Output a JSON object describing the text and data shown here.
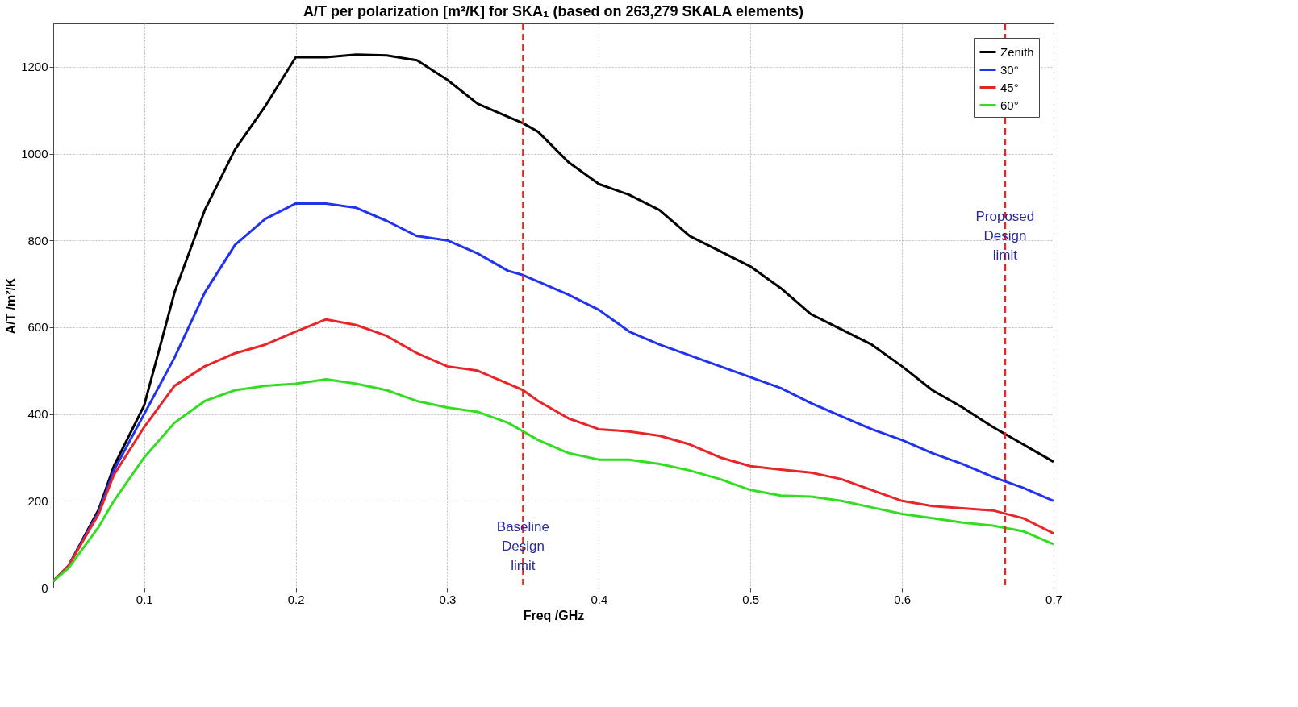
{
  "chart_data": {
    "type": "line",
    "title": "A/T per polarization [m²/K] for SKA₁ (based on 263,279 SKALA elements)",
    "xlabel": "Freq /GHz",
    "ylabel": "A/T /m²/K",
    "x": [
      0.04,
      0.05,
      0.07,
      0.08,
      0.1,
      0.12,
      0.14,
      0.16,
      0.18,
      0.2,
      0.22,
      0.24,
      0.26,
      0.28,
      0.3,
      0.32,
      0.34,
      0.35,
      0.36,
      0.38,
      0.4,
      0.42,
      0.44,
      0.46,
      0.48,
      0.5,
      0.52,
      0.54,
      0.56,
      0.58,
      0.6,
      0.62,
      0.64,
      0.66,
      0.68,
      0.7
    ],
    "series": [
      {
        "name": "Zenith",
        "color": "#000000",
        "values": [
          15,
          50,
          180,
          280,
          420,
          680,
          870,
          1010,
          1110,
          1222,
          1222,
          1228,
          1226,
          1215,
          1170,
          1115,
          1085,
          1070,
          1050,
          980,
          930,
          905,
          870,
          810,
          775,
          740,
          690,
          630,
          595,
          560,
          510,
          455,
          415,
          370,
          330,
          290
        ]
      },
      {
        "name": "30°",
        "color": "#2233ee",
        "values": [
          15,
          50,
          175,
          270,
          400,
          530,
          680,
          790,
          850,
          885,
          885,
          875,
          845,
          810,
          800,
          770,
          730,
          720,
          705,
          675,
          640,
          590,
          560,
          535,
          510,
          485,
          460,
          425,
          395,
          365,
          340,
          310,
          285,
          255,
          230,
          200
        ]
      },
      {
        "name": "45°",
        "color": "#e8262a",
        "values": [
          15,
          50,
          170,
          260,
          370,
          465,
          510,
          540,
          560,
          590,
          618,
          605,
          580,
          540,
          510,
          500,
          470,
          455,
          430,
          390,
          365,
          360,
          350,
          330,
          300,
          280,
          272,
          265,
          250,
          225,
          200,
          188,
          183,
          178,
          160,
          125
        ]
      },
      {
        "name": "60°",
        "color": "#33dd22",
        "values": [
          15,
          45,
          140,
          200,
          300,
          380,
          430,
          455,
          465,
          470,
          480,
          470,
          455,
          430,
          415,
          405,
          380,
          360,
          340,
          310,
          295,
          295,
          285,
          270,
          250,
          225,
          212,
          210,
          200,
          185,
          170,
          160,
          150,
          143,
          130,
          100
        ]
      }
    ],
    "xlim": [
      0.04,
      0.7
    ],
    "xticks": [
      0.1,
      0.2,
      0.3,
      0.4,
      0.5,
      0.6,
      0.7
    ],
    "ylim": [
      0,
      1300
    ],
    "yticks": [
      0,
      200,
      400,
      600,
      800,
      1000,
      1200
    ],
    "ref_lines": [
      {
        "axis": "x",
        "value": 0.35,
        "label": "Baseline Design limit",
        "color": "#ee2222",
        "line_style": "dashed"
      },
      {
        "axis": "x",
        "value": 0.668,
        "label": "Proposed Design limit",
        "color": "#ee2222",
        "line_style": "dashed"
      }
    ],
    "grid": true,
    "legend": "top right",
    "marker": "none",
    "line_style": "solid"
  }
}
